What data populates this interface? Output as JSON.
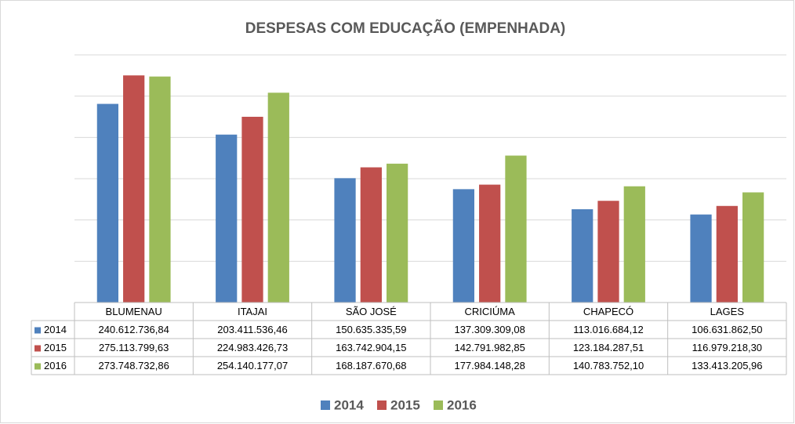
{
  "chart_data": {
    "type": "bar",
    "title": "DESPESAS COM EDUCAÇÃO (EMPENHADA)",
    "categories": [
      "BLUMENAU",
      "ITAJAI",
      "SÃO JOSÉ",
      "CRICIÚMA",
      "CHAPECÓ",
      "LAGES"
    ],
    "series": [
      {
        "name": "2014",
        "color": "#4f81bd",
        "values": [
          240612736.84,
          203411536.46,
          150635335.59,
          137309309.08,
          113016684.12,
          106631862.5
        ],
        "value_labels": [
          "240.612.736,84",
          "203.411.536,46",
          "150.635.335,59",
          "137.309.309,08",
          "113.016.684,12",
          "106.631.862,50"
        ]
      },
      {
        "name": "2015",
        "color": "#c0504d",
        "values": [
          275113799.63,
          224983426.73,
          163742904.15,
          142791982.85,
          123184287.51,
          116979218.3
        ],
        "value_labels": [
          "275.113.799,63",
          "224.983.426,73",
          "163.742.904,15",
          "142.791.982,85",
          "123.184.287,51",
          "116.979.218,30"
        ]
      },
      {
        "name": "2016",
        "color": "#9bbb59",
        "values": [
          273748732.86,
          254140177.07,
          168187670.68,
          177984148.28,
          140783752.1,
          133413205.96
        ],
        "value_labels": [
          "273.748.732,86",
          "254.140.177,07",
          "168.187.670,68",
          "177.984.148,28",
          "140.783.752,10",
          "133.413.205,96"
        ]
      }
    ],
    "ylim": [
      0,
      300000000
    ],
    "yticks": [
      0,
      50000000,
      100000000,
      150000000,
      200000000,
      250000000,
      300000000
    ],
    "grid": true,
    "legend": "bottom"
  }
}
